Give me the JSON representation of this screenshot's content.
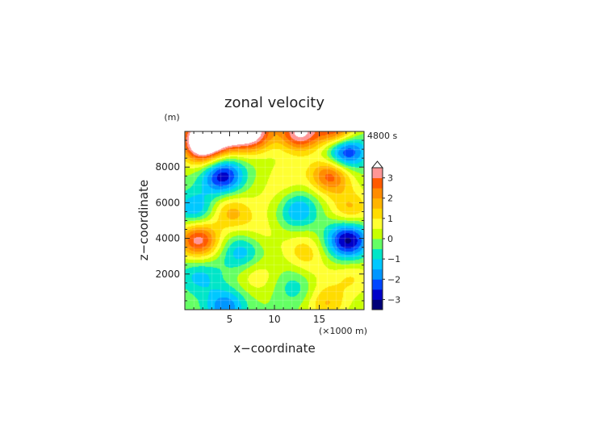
{
  "chart_data": {
    "type": "heatmap",
    "title": "zonal velocity",
    "xlabel": "x−coordinate",
    "ylabel": "z−coordinate",
    "x_unit": "(×1000 m)",
    "y_unit": "(m)",
    "time_label": "4800 s",
    "xlim": [
      0,
      20
    ],
    "ylim": [
      0,
      10000
    ],
    "x_ticks": [
      "5",
      "10",
      "15"
    ],
    "y_ticks": [
      "2000",
      "4000",
      "6000",
      "8000"
    ],
    "colorbar": {
      "ticks": [
        "3",
        "2",
        "1",
        "0",
        "−1",
        "−2",
        "−3"
      ],
      "range": [
        -3.5,
        3.5
      ],
      "extend": "max"
    },
    "features": [
      {
        "x": 2.0,
        "z": 9100,
        "value": 3.2
      },
      {
        "x": 2.2,
        "z": 9900,
        "value": 3.6
      },
      {
        "x": 5.0,
        "z": 9950,
        "value": 3.4
      },
      {
        "x": 7.6,
        "z": 9950,
        "value": 3.6
      },
      {
        "x": 12.8,
        "z": 9950,
        "value": 3.6
      },
      {
        "x": 17.0,
        "z": 9950,
        "value": 3.6
      },
      {
        "x": 17.8,
        "z": 8950,
        "value": -3.6
      },
      {
        "x": 4.2,
        "z": 7500,
        "value": -2.9
      },
      {
        "x": 16.3,
        "z": 7550,
        "value": 2.9
      },
      {
        "x": 11.5,
        "z": 7500,
        "value": 0.8
      },
      {
        "x": 8.2,
        "z": 6900,
        "value": 0.1
      },
      {
        "x": 1.2,
        "z": 5600,
        "value": -1.6
      },
      {
        "x": 5.0,
        "z": 5500,
        "value": 1.6
      },
      {
        "x": 12.5,
        "z": 5600,
        "value": -1.6
      },
      {
        "x": 18.5,
        "z": 5650,
        "value": 1.6
      },
      {
        "x": 10.0,
        "z": 6100,
        "value": 0.6
      },
      {
        "x": 1.5,
        "z": 3900,
        "value": 3.3
      },
      {
        "x": 18.2,
        "z": 3900,
        "value": -3.2
      },
      {
        "x": 6.3,
        "z": 3200,
        "value": -1.4
      },
      {
        "x": 13.3,
        "z": 3300,
        "value": 1.2
      },
      {
        "x": 9.0,
        "z": 4200,
        "value": 0.5
      },
      {
        "x": 1.6,
        "z": 1900,
        "value": -1.2
      },
      {
        "x": 8.0,
        "z": 1900,
        "value": 0.9
      },
      {
        "x": 18.7,
        "z": 1800,
        "value": 1.0
      },
      {
        "x": 4.5,
        "z": 150,
        "value": -1.9
      },
      {
        "x": 15.8,
        "z": 350,
        "value": 1.5
      },
      {
        "x": 12.5,
        "z": 1300,
        "value": -0.9
      },
      {
        "x": 14.5,
        "z": 2000,
        "value": 0.5
      },
      {
        "x": 7.2,
        "z": 4900,
        "value": 0.4
      }
    ]
  },
  "colors": {
    "palette": [
      "#000078",
      "#0000c8",
      "#0046ff",
      "#0096ff",
      "#00c8ff",
      "#00e6c8",
      "#64ff64",
      "#c8ff00",
      "#ffff32",
      "#ffdc00",
      "#ffb400",
      "#ff8c00",
      "#ff5a00",
      "#f00000",
      "#c80000",
      "#ff9696"
    ]
  }
}
